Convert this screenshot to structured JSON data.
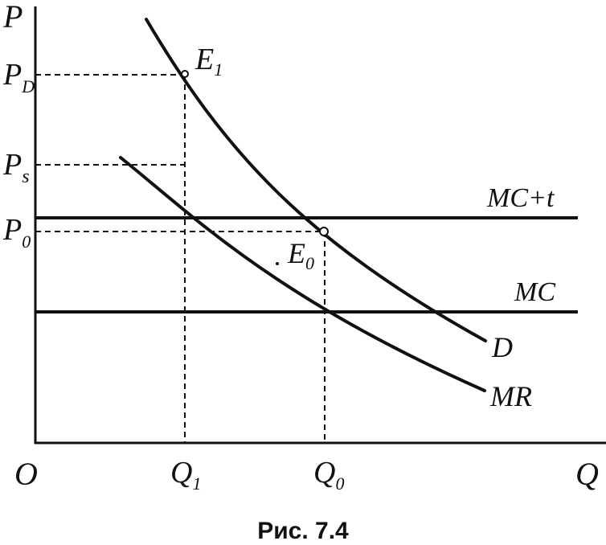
{
  "axes": {
    "y_label": "P",
    "x_label": "Q",
    "origin_label": "O"
  },
  "price_labels": {
    "pd": {
      "main": "P",
      "sub": "D"
    },
    "ps": {
      "main": "P",
      "sub": "s"
    },
    "p0": {
      "main": "P",
      "sub": "0"
    }
  },
  "quantity_labels": {
    "q1": {
      "main": "Q",
      "sub": "1"
    },
    "q0": {
      "main": "Q",
      "sub": "0"
    }
  },
  "points": {
    "e1": {
      "main": "E",
      "sub": "1"
    },
    "e0": {
      "main": "E",
      "sub": "0"
    }
  },
  "curves": {
    "mc_t": "MC+t",
    "mc": "MC",
    "demand": "D",
    "mr": "MR"
  },
  "caption": "Рис. 7.4",
  "ink_color": "#111111",
  "background_color": "#ffffff"
}
